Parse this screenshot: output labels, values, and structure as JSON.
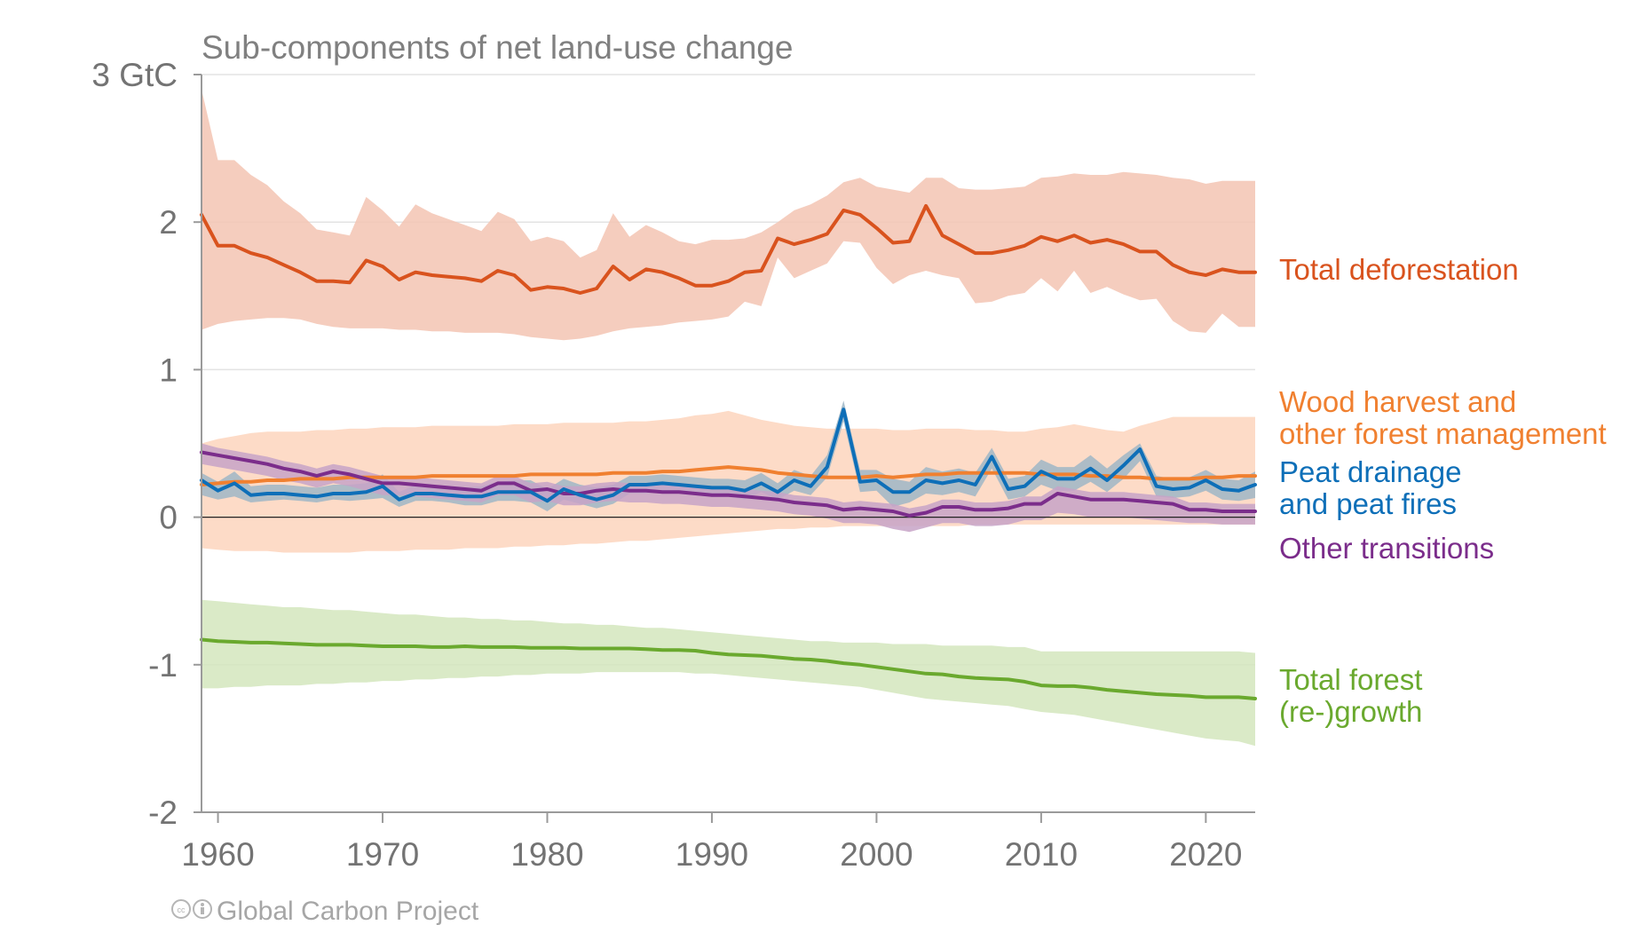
{
  "chart_data": {
    "type": "line",
    "title": "Sub-components of net land-use change",
    "y_unit_label": "3 GtC",
    "y_tick_labels": [
      "-2",
      "-1",
      "0",
      "1",
      "2"
    ],
    "x_tick_labels": [
      "1960",
      "1970",
      "1980",
      "1990",
      "2000",
      "2010",
      "2020"
    ],
    "xlim": [
      1959,
      2023
    ],
    "ylim": [
      -2,
      3
    ],
    "grid": true,
    "zero_line": true,
    "legend_placement": "right (direct labels)",
    "credit": "Global Carbon Project",
    "x": [
      1959,
      1960,
      1961,
      1962,
      1963,
      1964,
      1965,
      1966,
      1967,
      1968,
      1969,
      1970,
      1971,
      1972,
      1973,
      1974,
      1975,
      1976,
      1977,
      1978,
      1979,
      1980,
      1981,
      1982,
      1983,
      1984,
      1985,
      1986,
      1987,
      1988,
      1989,
      1990,
      1991,
      1992,
      1993,
      1994,
      1995,
      1996,
      1997,
      1998,
      1999,
      2000,
      2001,
      2002,
      2003,
      2004,
      2005,
      2006,
      2007,
      2008,
      2009,
      2010,
      2011,
      2012,
      2013,
      2014,
      2015,
      2016,
      2017,
      2018,
      2019,
      2020,
      2021,
      2022,
      2023
    ],
    "series": [
      {
        "name": "Total deforestation",
        "label_lines": [
          "Total deforestation"
        ],
        "color": "#d9531e",
        "band_color": "#f3c4b3",
        "values": [
          2.05,
          1.84,
          1.84,
          1.79,
          1.76,
          1.71,
          1.66,
          1.6,
          1.6,
          1.59,
          1.74,
          1.7,
          1.61,
          1.66,
          1.64,
          1.63,
          1.62,
          1.6,
          1.67,
          1.64,
          1.54,
          1.56,
          1.55,
          1.52,
          1.55,
          1.7,
          1.61,
          1.68,
          1.66,
          1.62,
          1.57,
          1.57,
          1.6,
          1.66,
          1.67,
          1.89,
          1.85,
          1.88,
          1.92,
          2.08,
          2.05,
          1.96,
          1.86,
          1.87,
          2.11,
          1.91,
          1.85,
          1.79,
          1.79,
          1.81,
          1.84,
          1.9,
          1.87,
          1.91,
          1.86,
          1.88,
          1.85,
          1.8,
          1.8,
          1.71,
          1.66,
          1.64,
          1.68,
          1.66,
          1.66
        ],
        "lower": [
          1.27,
          1.31,
          1.33,
          1.34,
          1.35,
          1.35,
          1.34,
          1.31,
          1.29,
          1.28,
          1.28,
          1.28,
          1.27,
          1.27,
          1.26,
          1.26,
          1.25,
          1.25,
          1.25,
          1.24,
          1.22,
          1.21,
          1.2,
          1.21,
          1.23,
          1.26,
          1.28,
          1.29,
          1.3,
          1.32,
          1.33,
          1.34,
          1.36,
          1.46,
          1.43,
          1.76,
          1.62,
          1.67,
          1.72,
          1.87,
          1.86,
          1.69,
          1.58,
          1.64,
          1.67,
          1.64,
          1.62,
          1.45,
          1.46,
          1.5,
          1.52,
          1.62,
          1.53,
          1.67,
          1.52,
          1.56,
          1.51,
          1.47,
          1.48,
          1.33,
          1.26,
          1.25,
          1.38,
          1.29,
          1.29
        ],
        "upper": [
          2.9,
          2.42,
          2.42,
          2.32,
          2.25,
          2.14,
          2.06,
          1.95,
          1.93,
          1.91,
          2.17,
          2.08,
          1.97,
          2.12,
          2.06,
          2.02,
          1.98,
          1.94,
          2.07,
          2.02,
          1.87,
          1.9,
          1.87,
          1.76,
          1.81,
          2.06,
          1.9,
          1.98,
          1.93,
          1.87,
          1.85,
          1.88,
          1.88,
          1.89,
          1.93,
          2.0,
          2.08,
          2.12,
          2.18,
          2.27,
          2.3,
          2.24,
          2.22,
          2.2,
          2.3,
          2.3,
          2.23,
          2.22,
          2.22,
          2.23,
          2.24,
          2.3,
          2.31,
          2.33,
          2.32,
          2.32,
          2.34,
          2.33,
          2.32,
          2.3,
          2.29,
          2.26,
          2.28,
          2.28,
          2.28
        ]
      },
      {
        "name": "Wood harvest and other forest management",
        "label_lines": [
          "Wood harvest and",
          "other forest management"
        ],
        "color": "#f08030",
        "band_color": "#fdd5bd",
        "values": [
          0.22,
          0.23,
          0.24,
          0.24,
          0.25,
          0.25,
          0.26,
          0.26,
          0.26,
          0.27,
          0.27,
          0.27,
          0.27,
          0.27,
          0.28,
          0.28,
          0.28,
          0.28,
          0.28,
          0.28,
          0.29,
          0.29,
          0.29,
          0.29,
          0.29,
          0.3,
          0.3,
          0.3,
          0.31,
          0.31,
          0.32,
          0.33,
          0.34,
          0.33,
          0.32,
          0.3,
          0.29,
          0.28,
          0.27,
          0.27,
          0.27,
          0.28,
          0.27,
          0.28,
          0.29,
          0.29,
          0.3,
          0.3,
          0.3,
          0.3,
          0.3,
          0.29,
          0.29,
          0.29,
          0.28,
          0.28,
          0.27,
          0.27,
          0.26,
          0.26,
          0.26,
          0.27,
          0.27,
          0.28,
          0.28
        ],
        "lower": [
          -0.21,
          -0.22,
          -0.23,
          -0.23,
          -0.23,
          -0.24,
          -0.24,
          -0.24,
          -0.24,
          -0.24,
          -0.23,
          -0.23,
          -0.23,
          -0.22,
          -0.22,
          -0.22,
          -0.21,
          -0.21,
          -0.21,
          -0.2,
          -0.2,
          -0.19,
          -0.19,
          -0.18,
          -0.18,
          -0.17,
          -0.16,
          -0.16,
          -0.15,
          -0.14,
          -0.13,
          -0.12,
          -0.11,
          -0.1,
          -0.09,
          -0.08,
          -0.08,
          -0.07,
          -0.07,
          -0.06,
          -0.06,
          -0.06,
          -0.06,
          -0.06,
          -0.06,
          -0.06,
          -0.06,
          -0.05,
          -0.05,
          -0.05,
          -0.05,
          -0.05,
          -0.05,
          -0.05,
          -0.05,
          -0.05,
          -0.05,
          -0.05,
          -0.05,
          -0.05,
          -0.05,
          -0.05,
          -0.05,
          -0.05,
          -0.05
        ],
        "upper": [
          0.5,
          0.53,
          0.55,
          0.57,
          0.58,
          0.58,
          0.58,
          0.59,
          0.59,
          0.6,
          0.6,
          0.61,
          0.61,
          0.61,
          0.62,
          0.62,
          0.62,
          0.62,
          0.62,
          0.63,
          0.63,
          0.63,
          0.64,
          0.64,
          0.64,
          0.64,
          0.65,
          0.65,
          0.66,
          0.67,
          0.69,
          0.7,
          0.72,
          0.69,
          0.66,
          0.64,
          0.62,
          0.61,
          0.6,
          0.6,
          0.6,
          0.6,
          0.59,
          0.59,
          0.6,
          0.6,
          0.6,
          0.59,
          0.59,
          0.58,
          0.58,
          0.6,
          0.61,
          0.63,
          0.61,
          0.59,
          0.58,
          0.62,
          0.65,
          0.68,
          0.68,
          0.68,
          0.68,
          0.68,
          0.68
        ]
      },
      {
        "name": "Peat drainage and peat fires",
        "label_lines": [
          "Peat drainage",
          "and peat fires"
        ],
        "color": "#0e6fb8",
        "band_color": "#9fb6c6",
        "values": [
          0.25,
          0.18,
          0.23,
          0.15,
          0.16,
          0.16,
          0.15,
          0.14,
          0.16,
          0.16,
          0.17,
          0.21,
          0.12,
          0.16,
          0.16,
          0.15,
          0.14,
          0.14,
          0.17,
          0.17,
          0.17,
          0.11,
          0.19,
          0.15,
          0.12,
          0.15,
          0.22,
          0.22,
          0.23,
          0.22,
          0.21,
          0.2,
          0.2,
          0.18,
          0.23,
          0.17,
          0.25,
          0.21,
          0.34,
          0.73,
          0.24,
          0.25,
          0.17,
          0.17,
          0.25,
          0.23,
          0.25,
          0.22,
          0.41,
          0.19,
          0.21,
          0.31,
          0.26,
          0.26,
          0.33,
          0.25,
          0.35,
          0.46,
          0.21,
          0.19,
          0.2,
          0.25,
          0.19,
          0.18,
          0.22
        ],
        "lower": [
          0.15,
          0.12,
          0.14,
          0.1,
          0.11,
          0.12,
          0.11,
          0.1,
          0.12,
          0.11,
          0.12,
          0.13,
          0.07,
          0.11,
          0.11,
          0.1,
          0.08,
          0.08,
          0.11,
          0.11,
          0.1,
          0.04,
          0.12,
          0.09,
          0.06,
          0.09,
          0.16,
          0.16,
          0.17,
          0.16,
          0.15,
          0.14,
          0.14,
          0.12,
          0.17,
          0.12,
          0.18,
          0.15,
          0.27,
          0.65,
          0.17,
          0.18,
          0.07,
          0.1,
          0.16,
          0.15,
          0.17,
          0.14,
          0.33,
          0.12,
          0.14,
          0.22,
          0.18,
          0.18,
          0.24,
          0.17,
          0.26,
          0.38,
          0.14,
          0.13,
          0.14,
          0.18,
          0.12,
          0.11,
          0.13
        ],
        "upper": [
          0.3,
          0.24,
          0.31,
          0.21,
          0.22,
          0.22,
          0.21,
          0.2,
          0.22,
          0.22,
          0.23,
          0.29,
          0.17,
          0.22,
          0.21,
          0.2,
          0.2,
          0.21,
          0.24,
          0.25,
          0.25,
          0.19,
          0.26,
          0.22,
          0.2,
          0.22,
          0.28,
          0.28,
          0.29,
          0.28,
          0.27,
          0.26,
          0.26,
          0.25,
          0.3,
          0.23,
          0.32,
          0.28,
          0.42,
          0.79,
          0.32,
          0.32,
          0.26,
          0.24,
          0.34,
          0.31,
          0.33,
          0.3,
          0.47,
          0.26,
          0.28,
          0.39,
          0.34,
          0.34,
          0.42,
          0.33,
          0.42,
          0.5,
          0.28,
          0.26,
          0.27,
          0.32,
          0.26,
          0.25,
          0.31
        ]
      },
      {
        "name": "Other transitions",
        "label_lines": [
          "Other transitions"
        ],
        "color": "#7b2d8b",
        "band_color": "#c7a3c7",
        "values": [
          0.44,
          0.42,
          0.4,
          0.38,
          0.36,
          0.33,
          0.31,
          0.28,
          0.31,
          0.29,
          0.26,
          0.23,
          0.23,
          0.22,
          0.21,
          0.2,
          0.19,
          0.18,
          0.23,
          0.23,
          0.18,
          0.19,
          0.16,
          0.16,
          0.18,
          0.19,
          0.18,
          0.18,
          0.17,
          0.17,
          0.16,
          0.15,
          0.15,
          0.14,
          0.13,
          0.12,
          0.1,
          0.09,
          0.08,
          0.05,
          0.06,
          0.05,
          0.04,
          0.01,
          0.03,
          0.07,
          0.07,
          0.05,
          0.05,
          0.06,
          0.09,
          0.09,
          0.16,
          0.14,
          0.12,
          0.12,
          0.12,
          0.11,
          0.1,
          0.09,
          0.05,
          0.05,
          0.04,
          0.04,
          0.04
        ],
        "lower": [
          0.36,
          0.34,
          0.32,
          0.3,
          0.28,
          0.25,
          0.23,
          0.2,
          0.23,
          0.21,
          0.18,
          0.15,
          0.15,
          0.14,
          0.13,
          0.12,
          0.11,
          0.1,
          0.15,
          0.15,
          0.1,
          0.11,
          0.08,
          0.08,
          0.1,
          0.11,
          0.1,
          0.1,
          0.09,
          0.09,
          0.08,
          0.07,
          0.07,
          0.06,
          0.05,
          0.04,
          0.02,
          0.01,
          -0.01,
          -0.04,
          -0.04,
          -0.05,
          -0.08,
          -0.1,
          -0.07,
          -0.04,
          -0.04,
          -0.06,
          -0.06,
          -0.05,
          -0.02,
          -0.02,
          0.03,
          0.02,
          0.0,
          0.0,
          0.0,
          -0.01,
          -0.02,
          -0.03,
          -0.04,
          -0.04,
          -0.05,
          -0.05,
          -0.05
        ],
        "upper": [
          0.5,
          0.47,
          0.45,
          0.43,
          0.41,
          0.38,
          0.36,
          0.33,
          0.36,
          0.34,
          0.31,
          0.28,
          0.28,
          0.27,
          0.26,
          0.25,
          0.24,
          0.23,
          0.28,
          0.28,
          0.23,
          0.24,
          0.21,
          0.21,
          0.23,
          0.24,
          0.23,
          0.23,
          0.22,
          0.22,
          0.21,
          0.2,
          0.2,
          0.19,
          0.18,
          0.17,
          0.15,
          0.14,
          0.13,
          0.1,
          0.11,
          0.1,
          0.09,
          0.06,
          0.08,
          0.12,
          0.12,
          0.1,
          0.1,
          0.11,
          0.14,
          0.14,
          0.21,
          0.19,
          0.17,
          0.17,
          0.17,
          0.16,
          0.15,
          0.14,
          0.1,
          0.1,
          0.09,
          0.09,
          0.09
        ]
      },
      {
        "name": "Total forest (re-)growth",
        "label_lines": [
          "Total forest",
          "(re-)growth"
        ],
        "color": "#6aa92e",
        "band_color": "#d3e6bd",
        "values": [
          -0.83,
          -0.84,
          -0.845,
          -0.85,
          -0.85,
          -0.855,
          -0.86,
          -0.865,
          -0.865,
          -0.865,
          -0.87,
          -0.875,
          -0.875,
          -0.875,
          -0.88,
          -0.88,
          -0.875,
          -0.88,
          -0.88,
          -0.88,
          -0.885,
          -0.885,
          -0.885,
          -0.89,
          -0.89,
          -0.89,
          -0.89,
          -0.895,
          -0.9,
          -0.9,
          -0.905,
          -0.92,
          -0.93,
          -0.935,
          -0.94,
          -0.95,
          -0.96,
          -0.965,
          -0.975,
          -0.99,
          -1.0,
          -1.015,
          -1.03,
          -1.045,
          -1.06,
          -1.065,
          -1.08,
          -1.09,
          -1.095,
          -1.1,
          -1.115,
          -1.14,
          -1.145,
          -1.145,
          -1.155,
          -1.17,
          -1.18,
          -1.19,
          -1.2,
          -1.205,
          -1.21,
          -1.22,
          -1.22,
          -1.22,
          -1.23
        ],
        "lower": [
          -1.16,
          -1.16,
          -1.15,
          -1.15,
          -1.14,
          -1.14,
          -1.14,
          -1.13,
          -1.13,
          -1.12,
          -1.12,
          -1.11,
          -1.11,
          -1.1,
          -1.1,
          -1.09,
          -1.09,
          -1.08,
          -1.08,
          -1.07,
          -1.07,
          -1.06,
          -1.06,
          -1.06,
          -1.05,
          -1.05,
          -1.05,
          -1.05,
          -1.05,
          -1.05,
          -1.06,
          -1.06,
          -1.07,
          -1.08,
          -1.09,
          -1.1,
          -1.11,
          -1.12,
          -1.13,
          -1.14,
          -1.15,
          -1.17,
          -1.19,
          -1.21,
          -1.23,
          -1.24,
          -1.25,
          -1.26,
          -1.27,
          -1.28,
          -1.3,
          -1.32,
          -1.33,
          -1.34,
          -1.36,
          -1.38,
          -1.4,
          -1.42,
          -1.44,
          -1.46,
          -1.48,
          -1.5,
          -1.51,
          -1.52,
          -1.55
        ],
        "upper": [
          -0.56,
          -0.57,
          -0.58,
          -0.59,
          -0.6,
          -0.61,
          -0.61,
          -0.62,
          -0.63,
          -0.63,
          -0.64,
          -0.65,
          -0.66,
          -0.66,
          -0.67,
          -0.68,
          -0.68,
          -0.69,
          -0.69,
          -0.7,
          -0.7,
          -0.71,
          -0.72,
          -0.72,
          -0.73,
          -0.73,
          -0.74,
          -0.75,
          -0.75,
          -0.76,
          -0.77,
          -0.78,
          -0.79,
          -0.8,
          -0.81,
          -0.82,
          -0.83,
          -0.84,
          -0.84,
          -0.85,
          -0.85,
          -0.85,
          -0.86,
          -0.86,
          -0.86,
          -0.87,
          -0.87,
          -0.87,
          -0.87,
          -0.88,
          -0.88,
          -0.91,
          -0.91,
          -0.91,
          -0.91,
          -0.91,
          -0.91,
          -0.91,
          -0.91,
          -0.91,
          -0.91,
          -0.91,
          -0.91,
          -0.91,
          -0.92
        ]
      }
    ]
  }
}
